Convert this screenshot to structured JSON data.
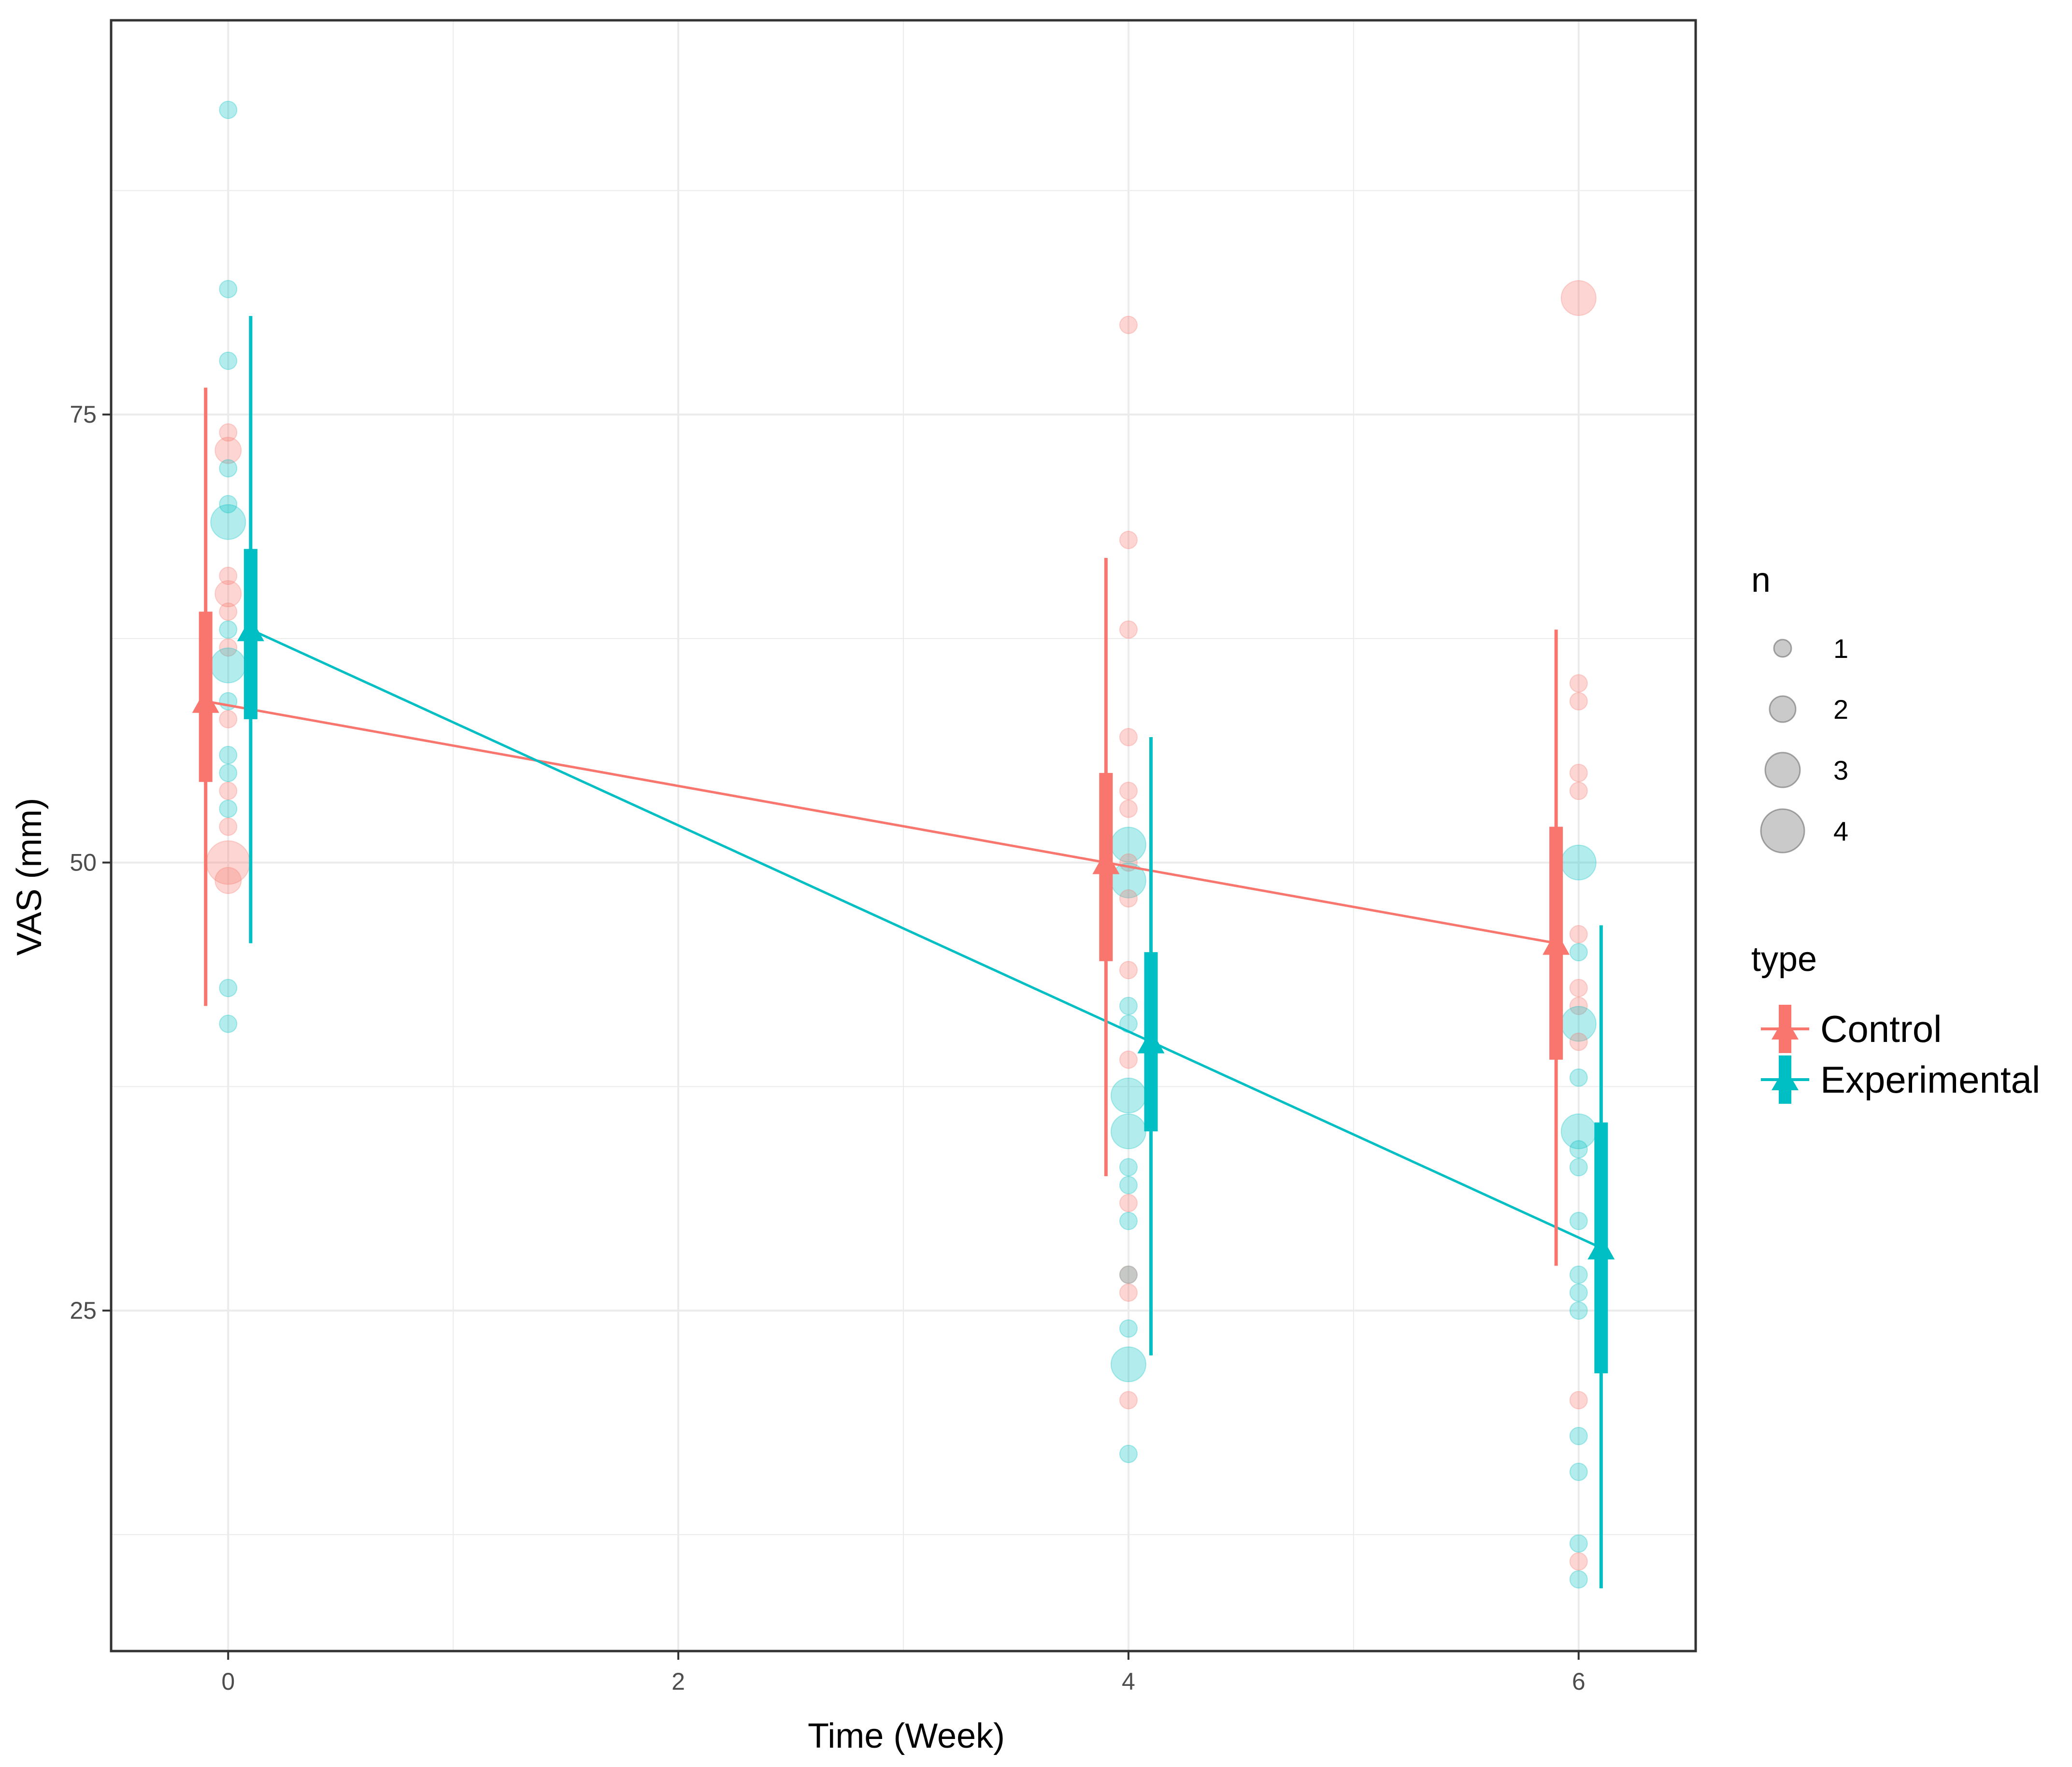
{
  "chart_data": {
    "type": "scatter",
    "xlabel": "Time (Week)",
    "ylabel": "VAS (mm)",
    "xlim": [
      -0.52,
      6.52
    ],
    "ylim": [
      6.0,
      97.0
    ],
    "x_ticks": [
      0,
      2,
      4,
      6
    ],
    "x_tick_labels": [
      "0",
      "2",
      "4",
      "6"
    ],
    "y_ticks": [
      25,
      50,
      75
    ],
    "y_tick_labels": [
      "25",
      "50",
      "75"
    ],
    "grid": true,
    "colors": {
      "Control": "#F8766D",
      "Experimental": "#00BFC4"
    },
    "series": [
      {
        "name": "Control",
        "offset": -0.1,
        "x": [
          0,
          4,
          6
        ],
        "mean": [
          59,
          50,
          45.5
        ],
        "inner": [
          [
            54.5,
            64
          ],
          [
            44.5,
            55
          ],
          [
            39,
            52
          ]
        ],
        "outer": [
          [
            42,
            76.5
          ],
          [
            32.5,
            67
          ],
          [
            27.5,
            63
          ]
        ]
      },
      {
        "name": "Experimental",
        "offset": 0.1,
        "x": [
          0,
          4,
          6
        ],
        "mean": [
          63,
          40,
          28.5
        ],
        "inner": [
          [
            58,
            67.5
          ],
          [
            35,
            45
          ],
          [
            21.5,
            35.5
          ]
        ],
        "outer": [
          [
            45.5,
            80.5
          ],
          [
            22.5,
            57
          ],
          [
            9.5,
            46.5
          ]
        ]
      }
    ],
    "points": [
      {
        "group": "Experimental",
        "x": 0,
        "y": 92,
        "n": 1
      },
      {
        "group": "Experimental",
        "x": 0,
        "y": 82,
        "n": 1
      },
      {
        "group": "Experimental",
        "x": 0,
        "y": 78,
        "n": 1
      },
      {
        "group": "Control",
        "x": 0,
        "y": 74,
        "n": 1
      },
      {
        "group": "Control",
        "x": 0,
        "y": 73,
        "n": 2
      },
      {
        "group": "Experimental",
        "x": 0,
        "y": 72,
        "n": 1
      },
      {
        "group": "Experimental",
        "x": 0,
        "y": 70,
        "n": 1
      },
      {
        "group": "Experimental",
        "x": 0,
        "y": 69,
        "n": 3
      },
      {
        "group": "Control",
        "x": 0,
        "y": 66,
        "n": 1
      },
      {
        "group": "Control",
        "x": 0,
        "y": 65,
        "n": 2
      },
      {
        "group": "Control",
        "x": 0,
        "y": 64,
        "n": 1
      },
      {
        "group": "Experimental",
        "x": 0,
        "y": 63,
        "n": 1
      },
      {
        "group": "Control",
        "x": 0,
        "y": 62,
        "n": 1
      },
      {
        "group": "Experimental",
        "x": 0,
        "y": 61,
        "n": 3
      },
      {
        "group": "Experimental",
        "x": 0,
        "y": 59,
        "n": 1
      },
      {
        "group": "Control",
        "x": 0,
        "y": 58,
        "n": 1
      },
      {
        "group": "Experimental",
        "x": 0,
        "y": 56,
        "n": 1
      },
      {
        "group": "Experimental",
        "x": 0,
        "y": 55,
        "n": 1
      },
      {
        "group": "Control",
        "x": 0,
        "y": 54,
        "n": 1
      },
      {
        "group": "Experimental",
        "x": 0,
        "y": 53,
        "n": 1
      },
      {
        "group": "Control",
        "x": 0,
        "y": 52,
        "n": 1
      },
      {
        "group": "Control",
        "x": 0,
        "y": 50,
        "n": 4
      },
      {
        "group": "Control",
        "x": 0,
        "y": 49,
        "n": 2
      },
      {
        "group": "Experimental",
        "x": 0,
        "y": 43,
        "n": 1
      },
      {
        "group": "Experimental",
        "x": 0,
        "y": 41,
        "n": 1
      },
      {
        "group": "Control",
        "x": 4,
        "y": 80,
        "n": 1
      },
      {
        "group": "Control",
        "x": 4,
        "y": 68,
        "n": 1
      },
      {
        "group": "Control",
        "x": 4,
        "y": 63,
        "n": 1
      },
      {
        "group": "Control",
        "x": 4,
        "y": 57,
        "n": 1
      },
      {
        "group": "Control",
        "x": 4,
        "y": 54,
        "n": 1
      },
      {
        "group": "Control",
        "x": 4,
        "y": 53,
        "n": 1
      },
      {
        "group": "Experimental",
        "x": 4,
        "y": 51,
        "n": 3
      },
      {
        "group": "Control",
        "x": 4,
        "y": 50,
        "n": 1
      },
      {
        "group": "Experimental",
        "x": 4,
        "y": 49,
        "n": 3
      },
      {
        "group": "Control",
        "x": 4,
        "y": 48,
        "n": 1
      },
      {
        "group": "Control",
        "x": 4,
        "y": 44,
        "n": 1
      },
      {
        "group": "Experimental",
        "x": 4,
        "y": 42,
        "n": 1
      },
      {
        "group": "Experimental",
        "x": 4,
        "y": 41,
        "n": 1
      },
      {
        "group": "Control",
        "x": 4,
        "y": 39,
        "n": 1
      },
      {
        "group": "Experimental",
        "x": 4,
        "y": 37,
        "n": 3
      },
      {
        "group": "Experimental",
        "x": 4,
        "y": 35,
        "n": 3
      },
      {
        "group": "Experimental",
        "x": 4,
        "y": 33,
        "n": 1
      },
      {
        "group": "Experimental",
        "x": 4,
        "y": 32,
        "n": 1
      },
      {
        "group": "Control",
        "x": 4,
        "y": 31,
        "n": 1
      },
      {
        "group": "Experimental",
        "x": 4,
        "y": 30,
        "n": 1
      },
      {
        "group": "Experimental",
        "x": 4,
        "y": 27,
        "n": 1
      },
      {
        "group": "Control",
        "x": 4,
        "y": 27,
        "n": 1
      },
      {
        "group": "Control",
        "x": 4,
        "y": 26,
        "n": 1
      },
      {
        "group": "Experimental",
        "x": 4,
        "y": 24,
        "n": 1
      },
      {
        "group": "Experimental",
        "x": 4,
        "y": 22,
        "n": 3
      },
      {
        "group": "Control",
        "x": 4,
        "y": 20,
        "n": 1
      },
      {
        "group": "Experimental",
        "x": 4,
        "y": 17,
        "n": 1
      },
      {
        "group": "Control",
        "x": 6,
        "y": 81.5,
        "n": 3
      },
      {
        "group": "Control",
        "x": 6,
        "y": 60,
        "n": 1
      },
      {
        "group": "Control",
        "x": 6,
        "y": 59,
        "n": 1
      },
      {
        "group": "Control",
        "x": 6,
        "y": 55,
        "n": 1
      },
      {
        "group": "Control",
        "x": 6,
        "y": 54,
        "n": 1
      },
      {
        "group": "Experimental",
        "x": 6,
        "y": 50,
        "n": 3
      },
      {
        "group": "Control",
        "x": 6,
        "y": 46,
        "n": 1
      },
      {
        "group": "Experimental",
        "x": 6,
        "y": 45,
        "n": 1
      },
      {
        "group": "Control",
        "x": 6,
        "y": 43,
        "n": 1
      },
      {
        "group": "Control",
        "x": 6,
        "y": 42,
        "n": 1
      },
      {
        "group": "Experimental",
        "x": 6,
        "y": 41,
        "n": 3
      },
      {
        "group": "Control",
        "x": 6,
        "y": 40,
        "n": 1
      },
      {
        "group": "Experimental",
        "x": 6,
        "y": 38,
        "n": 1
      },
      {
        "group": "Experimental",
        "x": 6,
        "y": 35,
        "n": 3
      },
      {
        "group": "Experimental",
        "x": 6,
        "y": 34,
        "n": 1
      },
      {
        "group": "Experimental",
        "x": 6,
        "y": 33,
        "n": 1
      },
      {
        "group": "Experimental",
        "x": 6,
        "y": 30,
        "n": 1
      },
      {
        "group": "Experimental",
        "x": 6,
        "y": 27,
        "n": 1
      },
      {
        "group": "Experimental",
        "x": 6,
        "y": 26,
        "n": 1
      },
      {
        "group": "Experimental",
        "x": 6,
        "y": 25,
        "n": 1
      },
      {
        "group": "Control",
        "x": 6,
        "y": 20,
        "n": 1
      },
      {
        "group": "Experimental",
        "x": 6,
        "y": 18,
        "n": 1
      },
      {
        "group": "Experimental",
        "x": 6,
        "y": 16,
        "n": 1
      },
      {
        "group": "Experimental",
        "x": 6,
        "y": 12,
        "n": 1
      },
      {
        "group": "Control",
        "x": 6,
        "y": 11,
        "n": 1
      },
      {
        "group": "Experimental",
        "x": 6,
        "y": 10,
        "n": 1
      }
    ],
    "legend": {
      "size_title": "n",
      "size_values": [
        1,
        2,
        3,
        4
      ],
      "size_labels": [
        "1",
        "2",
        "3",
        "4"
      ],
      "type_title": "type",
      "type_labels": [
        "Control",
        "Experimental"
      ]
    }
  }
}
